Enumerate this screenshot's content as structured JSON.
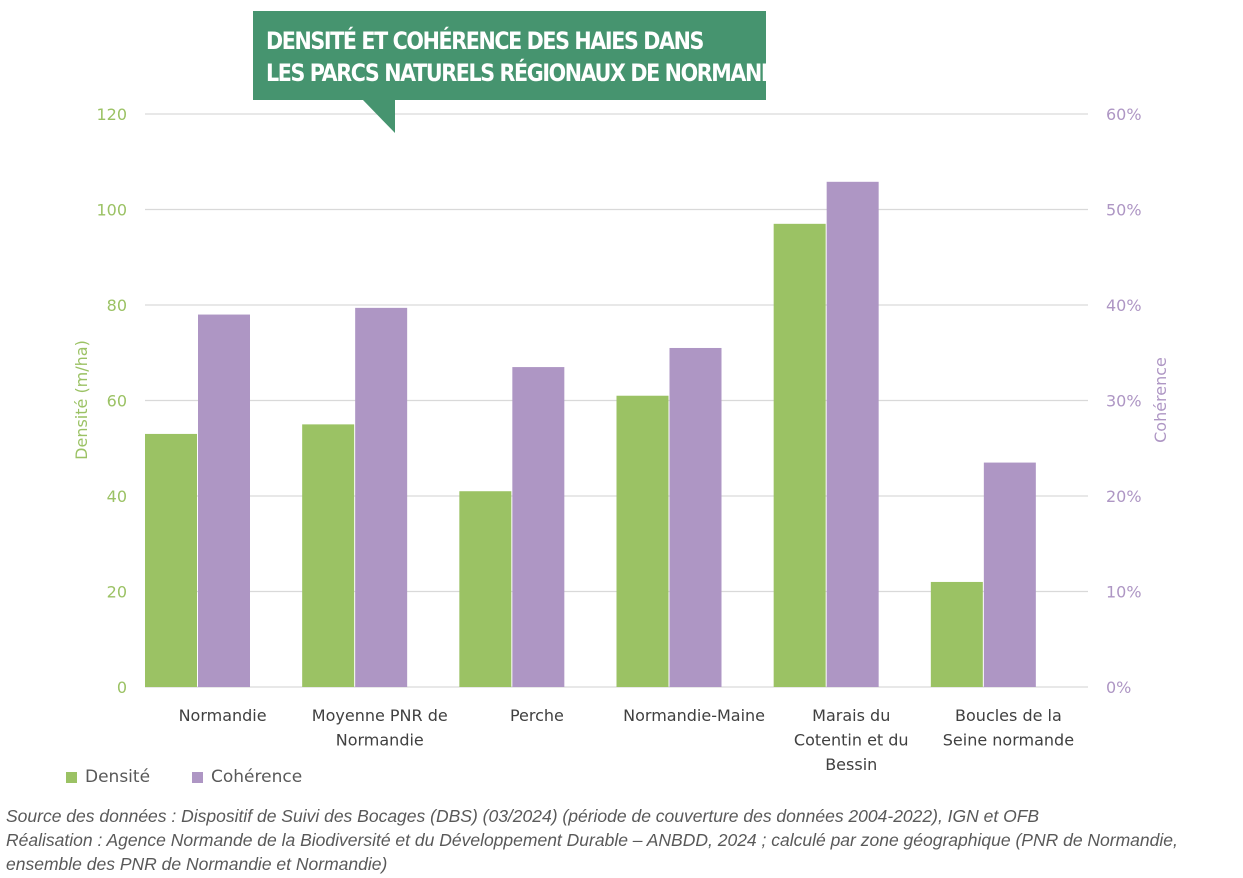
{
  "title": {
    "line1": "DENSITÉ ET COHÉRENCE DES HAIES DANS",
    "line2": "LES PARCS NATURELS RÉGIONAUX DE NORMANDIE"
  },
  "chart_data": {
    "type": "bar",
    "categories": [
      [
        "Normandie"
      ],
      [
        "Moyenne PNR de",
        "Normandie"
      ],
      [
        "Perche"
      ],
      [
        "Normandie-Maine"
      ],
      [
        "Marais du",
        "Cotentin et du",
        "Bessin"
      ],
      [
        "Boucles de la",
        "Seine normande"
      ]
    ],
    "series": [
      {
        "name": "Densité",
        "axis": "left",
        "color": "#9bc264",
        "values": [
          53,
          55,
          41,
          61,
          97,
          22
        ]
      },
      {
        "name": "Cohérence",
        "axis": "right",
        "color": "#ae96c4",
        "values": [
          0.39,
          0.397,
          0.335,
          0.355,
          0.529,
          0.235
        ]
      }
    ],
    "y_left": {
      "label": "Densité (m/ha)",
      "range": [
        0,
        120
      ],
      "ticks": [
        0,
        20,
        40,
        60,
        80,
        100,
        120
      ],
      "color": "#9bc264"
    },
    "y_right": {
      "label": "Cohérence",
      "range": [
        0,
        0.6
      ],
      "ticks": [
        "0%",
        "10%",
        "20%",
        "30%",
        "40%",
        "50%",
        "60%"
      ],
      "color": "#ae96c4"
    },
    "grid": true,
    "legend": "bottom-left"
  },
  "footer": {
    "line1": "Source des données : Dispositif de Suivi des Bocages (DBS) (03/2024) (période de couverture des données 2004-2022), IGN et OFB",
    "line2": "Réalisation : Agence Normande de la Biodiversité et du Développement Durable – ANBDD, 2024 ; calculé par zone géographique (PNR de Normandie,",
    "line3": "ensemble des PNR de Normandie et Normandie)"
  }
}
